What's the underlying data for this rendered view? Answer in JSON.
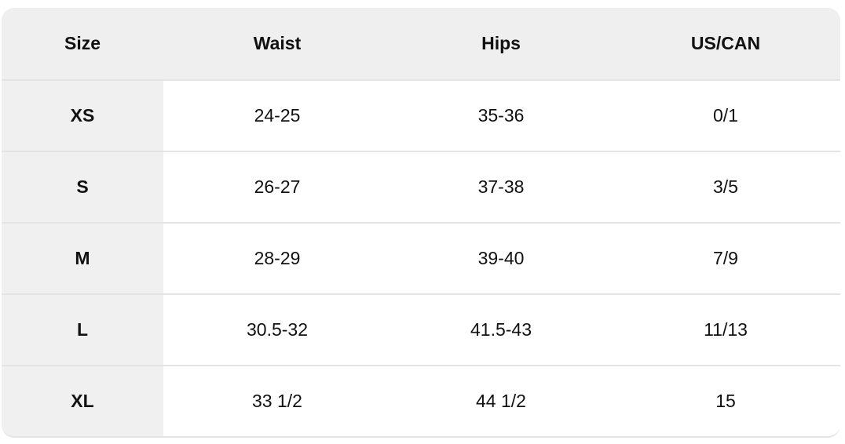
{
  "table": {
    "headers": [
      "Size",
      "Waist",
      "Hips",
      "US/CAN"
    ],
    "rows": [
      [
        "XS",
        "24-25",
        "35-36",
        "0/1"
      ],
      [
        "S",
        "26-27",
        "37-38",
        "3/5"
      ],
      [
        "M",
        "28-29",
        "39-40",
        "7/9"
      ],
      [
        "L",
        "30.5-32",
        "41.5-43",
        "11/13"
      ],
      [
        "XL",
        "33 1/2",
        "44 1/2",
        "15"
      ]
    ]
  },
  "colors": {
    "header_bg": "#efefef",
    "size_column_bg": "#f0f0f0",
    "divider": "#e4e4e4"
  }
}
